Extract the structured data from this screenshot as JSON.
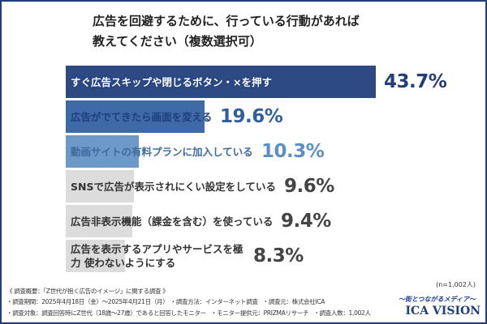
{
  "chart_data": {
    "type": "bar",
    "orientation": "horizontal",
    "title": "広告を回避するために、行っている行動があれば 教えてください（複数選択可）",
    "title_lines": [
      "広告を回避するために、行っている行動があれば",
      "教えてください（複数選択可）"
    ],
    "categories": [
      "すぐ広告スキップや閉じるボタン・×を押す",
      "広告がでてきたら画面を変える",
      "動画サイトの有料プランに加入している",
      "SNSで広告が表示されにくい設定をしている",
      "広告非表示機能（課金を含む）を使っている",
      "広告を表示するアプリやサービスを極力 使わないようにする"
    ],
    "values": [
      43.7,
      19.6,
      10.3,
      9.6,
      9.4,
      8.3
    ],
    "value_labels": [
      "43.7%",
      "19.6%",
      "10.3%",
      "9.6%",
      "9.4%",
      "8.3%"
    ],
    "bar_colors": [
      "#2e4a85",
      "#3e6aa8",
      "#6d99c8",
      "#dcdcdc",
      "#dcdcdc",
      "#dcdcdc"
    ],
    "value_colors": [
      "#223d78",
      "#2f5fa0",
      "#5b8fc7",
      "#444444",
      "#444444",
      "#444444"
    ],
    "sample_note": "(n=1,002人)"
  },
  "footer": {
    "heading": "《 調査概要：「Z世代が抱く広告のイメージ」に関する調査 》",
    "line1": [
      "・調査期間：2025年4月18日（金）～2025年4月21日（月）",
      "・調査方法：インターネット調査",
      "・調査元：株式会社ICA"
    ],
    "line2": [
      "・調査対象：調査回答時にZ世代（18歳～27歳）であると回答したモニター",
      "・モニター提供元：PRIZMAリサーチ",
      "・調査人数：1,002人"
    ]
  },
  "brand": {
    "tagline": "～街とつながるメディア～",
    "logo": "ICA VISION"
  }
}
